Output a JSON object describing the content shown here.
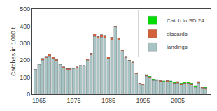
{
  "chart_data": {
    "type": "bar",
    "stacked": true,
    "x": [
      1964,
      1965,
      1966,
      1967,
      1968,
      1969,
      1970,
      1971,
      1972,
      1973,
      1974,
      1975,
      1976,
      1977,
      1978,
      1979,
      1980,
      1981,
      1982,
      1983,
      1984,
      1985,
      1986,
      1987,
      1988,
      1989,
      1990,
      1991,
      1992,
      1993,
      1994,
      1995,
      1996,
      1997,
      1998,
      1999,
      2000,
      2001,
      2002,
      2003,
      2004,
      2005,
      2006,
      2007,
      2008,
      2009,
      2010,
      2011,
      2012,
      2013
    ],
    "series": [
      {
        "name": "landings",
        "color": "#a8c4c4",
        "values": [
          145,
          175,
          200,
          215,
          225,
          210,
          195,
          175,
          155,
          145,
          145,
          150,
          155,
          165,
          165,
          200,
          230,
          340,
          330,
          335,
          330,
          210,
          320,
          395,
          320,
          255,
          215,
          195,
          185,
          120,
          60,
          55,
          105,
          95,
          80,
          80,
          75,
          70,
          75,
          70,
          60,
          65,
          55,
          60,
          60,
          55,
          40,
          65,
          35,
          30
        ]
      },
      {
        "name": "discards",
        "color": "#d4603a",
        "values": [
          0,
          5,
          10,
          8,
          12,
          10,
          8,
          5,
          5,
          5,
          5,
          5,
          5,
          5,
          5,
          5,
          10,
          15,
          10,
          15,
          15,
          10,
          15,
          5,
          10,
          5,
          8,
          5,
          5,
          5,
          5,
          5,
          5,
          5,
          5,
          5,
          5,
          5,
          5,
          5,
          5,
          5,
          5,
          5,
          5,
          5,
          5,
          5,
          5,
          5
        ]
      },
      {
        "name": "Catch in SD 24",
        "color": "#00dd00",
        "values": [
          0,
          0,
          0,
          0,
          0,
          0,
          0,
          0,
          0,
          0,
          0,
          0,
          0,
          0,
          0,
          0,
          0,
          0,
          0,
          0,
          0,
          0,
          0,
          0,
          0,
          0,
          0,
          0,
          0,
          0,
          0,
          0,
          5,
          5,
          5,
          3,
          3,
          3,
          3,
          3,
          5,
          5,
          5,
          5,
          5,
          5,
          5,
          5,
          5,
          5
        ]
      }
    ],
    "ylabel": "Catches in 1000 t",
    "xlim": [
      1963.0,
      2014.5
    ],
    "xticks": [
      1965,
      1975,
      1985,
      1995,
      2005
    ],
    "ylim": [
      0,
      500
    ],
    "yticks": [
      0,
      100,
      200,
      300,
      400,
      500
    ],
    "legend": "upper right"
  }
}
